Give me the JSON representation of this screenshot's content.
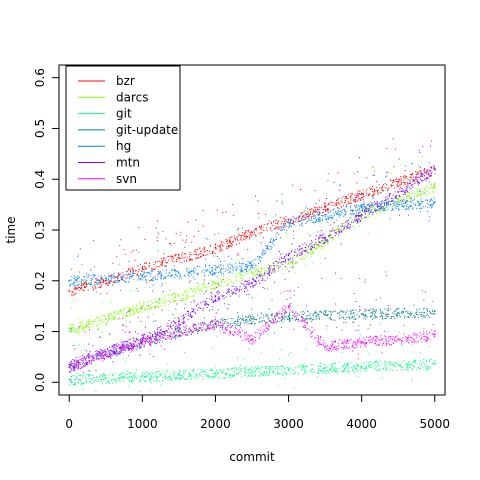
{
  "chart_data": {
    "type": "scatter",
    "title": "",
    "xlabel": "commit",
    "ylabel": "time",
    "xlim": [
      -140,
      5140
    ],
    "ylim": [
      -0.025,
      0.625
    ],
    "xticks": [
      0,
      1000,
      2000,
      3000,
      4000,
      5000
    ],
    "xtick_labels": [
      "0",
      "1000",
      "2000",
      "3000",
      "4000",
      "5000"
    ],
    "yticks": [
      0.0,
      0.1,
      0.2,
      0.3,
      0.4,
      0.5,
      0.6
    ],
    "ytick_labels": [
      "0.0",
      "0.1",
      "0.2",
      "0.3",
      "0.4",
      "0.5",
      "0.6"
    ],
    "grid": false,
    "legend_position": "top-left",
    "series": [
      {
        "name": "bzr",
        "color": "#ff0000",
        "points": [
          [
            0,
            0.18
          ],
          [
            500,
            0.2
          ],
          [
            1000,
            0.225
          ],
          [
            1500,
            0.245
          ],
          [
            2000,
            0.265
          ],
          [
            2500,
            0.295
          ],
          [
            3000,
            0.32
          ],
          [
            3500,
            0.345
          ],
          [
            4000,
            0.37
          ],
          [
            4500,
            0.395
          ],
          [
            5000,
            0.42
          ]
        ]
      },
      {
        "name": "darcs",
        "color": "#80ff00",
        "points": [
          [
            0,
            0.105
          ],
          [
            500,
            0.125
          ],
          [
            1000,
            0.15
          ],
          [
            1500,
            0.17
          ],
          [
            2000,
            0.195
          ],
          [
            2500,
            0.215
          ],
          [
            3000,
            0.235
          ],
          [
            3500,
            0.28
          ],
          [
            4000,
            0.33
          ],
          [
            4500,
            0.36
          ],
          [
            5000,
            0.385
          ]
        ]
      },
      {
        "name": "git",
        "color": "#00ff80",
        "points": [
          [
            0,
            0.005
          ],
          [
            500,
            0.008
          ],
          [
            1000,
            0.012
          ],
          [
            1500,
            0.015
          ],
          [
            2000,
            0.018
          ],
          [
            2500,
            0.022
          ],
          [
            3000,
            0.025
          ],
          [
            3500,
            0.028
          ],
          [
            4000,
            0.031
          ],
          [
            4500,
            0.034
          ],
          [
            5000,
            0.037
          ]
        ]
      },
      {
        "name": "git-update",
        "color": "#008080",
        "points": [
          [
            0,
            0.03
          ],
          [
            500,
            0.055
          ],
          [
            1000,
            0.08
          ],
          [
            1500,
            0.1
          ],
          [
            2000,
            0.115
          ],
          [
            2500,
            0.125
          ],
          [
            3000,
            0.13
          ],
          [
            3500,
            0.133
          ],
          [
            4000,
            0.135
          ],
          [
            4500,
            0.137
          ],
          [
            5000,
            0.14
          ]
        ]
      },
      {
        "name": "hg",
        "color": "#0080ff",
        "points": [
          [
            0,
            0.2
          ],
          [
            500,
            0.205
          ],
          [
            1000,
            0.21
          ],
          [
            1500,
            0.215
          ],
          [
            2000,
            0.222
          ],
          [
            2500,
            0.23
          ],
          [
            3000,
            0.315
          ],
          [
            3500,
            0.33
          ],
          [
            4000,
            0.345
          ],
          [
            4500,
            0.35
          ],
          [
            5000,
            0.355
          ]
        ]
      },
      {
        "name": "mtn",
        "color": "#8000ff",
        "points": [
          [
            0,
            0.035
          ],
          [
            500,
            0.06
          ],
          [
            1000,
            0.085
          ],
          [
            1500,
            0.12
          ],
          [
            2000,
            0.17
          ],
          [
            2500,
            0.195
          ],
          [
            3000,
            0.25
          ],
          [
            3500,
            0.285
          ],
          [
            4000,
            0.33
          ],
          [
            4500,
            0.375
          ],
          [
            5000,
            0.42
          ]
        ]
      },
      {
        "name": "svn",
        "color": "#ff00ff",
        "points": [
          [
            0,
            0.03
          ],
          [
            500,
            0.055
          ],
          [
            1000,
            0.08
          ],
          [
            1500,
            0.1
          ],
          [
            2000,
            0.115
          ],
          [
            2500,
            0.085
          ],
          [
            3000,
            0.15
          ],
          [
            3500,
            0.07
          ],
          [
            4000,
            0.08
          ],
          [
            4500,
            0.085
          ],
          [
            5000,
            0.095
          ]
        ]
      }
    ]
  }
}
